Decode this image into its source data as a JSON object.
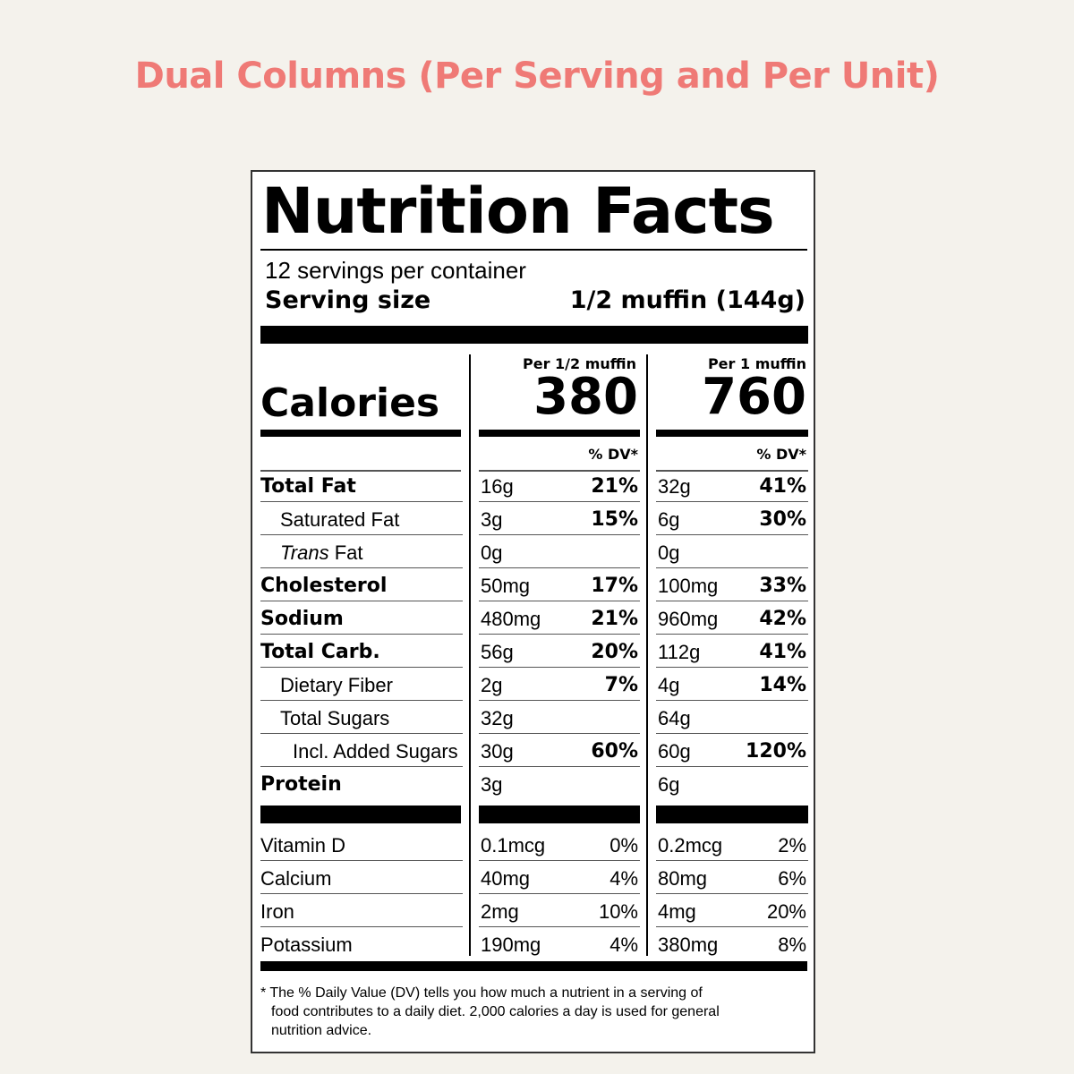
{
  "page_title": "Dual Columns (Per Serving and Per Unit)",
  "label": {
    "title": "Nutrition Facts",
    "servings_per_container": "12 servings per container",
    "serving_size_label": "Serving size",
    "serving_size_value": "1/2 muffin (144g)",
    "col1_header": "Per 1/2 muffin",
    "col2_header": "Per 1 muffin",
    "calories_label": "Calories",
    "calories_col1": "380",
    "calories_col2": "760",
    "dv_header": "% DV*",
    "nutrients": [
      {
        "name": "Total Fat",
        "amt1": "16g",
        "dv1": "21%",
        "amt2": "32g",
        "dv2": "41%"
      },
      {
        "name": "Saturated Fat",
        "amt1": "3g",
        "dv1": "15%",
        "amt2": "6g",
        "dv2": "30%"
      },
      {
        "name_italic": "Trans",
        "name_rest": " Fat",
        "amt1": "0g",
        "dv1": "",
        "amt2": "0g",
        "dv2": ""
      },
      {
        "name": "Cholesterol",
        "amt1": "50mg",
        "dv1": "17%",
        "amt2": "100mg",
        "dv2": "33%"
      },
      {
        "name": "Sodium",
        "amt1": "480mg",
        "dv1": "21%",
        "amt2": "960mg",
        "dv2": "42%"
      },
      {
        "name": "Total Carb.",
        "amt1": "56g",
        "dv1": "20%",
        "amt2": "112g",
        "dv2": "41%"
      },
      {
        "name": "Dietary Fiber",
        "amt1": "2g",
        "dv1": "7%",
        "amt2": "4g",
        "dv2": "14%"
      },
      {
        "name": "Total Sugars",
        "amt1": "32g",
        "dv1": "",
        "amt2": "64g",
        "dv2": ""
      },
      {
        "name": "Incl. Added Sugars",
        "amt1": "30g",
        "dv1": "60%",
        "amt2": "60g",
        "dv2": "120%"
      },
      {
        "name": "Protein",
        "amt1": "3g",
        "dv1": "",
        "amt2": "6g",
        "dv2": ""
      }
    ],
    "vitamins": [
      {
        "name": "Vitamin D",
        "amt1": "0.1mcg",
        "dv1": "0%",
        "amt2": "0.2mcg",
        "dv2": "2%"
      },
      {
        "name": "Calcium",
        "amt1": "40mg",
        "dv1": "4%",
        "amt2": "80mg",
        "dv2": "6%"
      },
      {
        "name": "Iron",
        "amt1": "2mg",
        "dv1": "10%",
        "amt2": "4mg",
        "dv2": "20%"
      },
      {
        "name": "Potassium",
        "amt1": "190mg",
        "dv1": "4%",
        "amt2": "380mg",
        "dv2": "8%"
      }
    ],
    "footnote_line1": "* The % Daily Value (DV) tells you how much a nutrient in a serving of",
    "footnote_line2": "food contributes to a daily diet. 2,000 calories a day is used for general",
    "footnote_line3": "nutrition advice."
  }
}
